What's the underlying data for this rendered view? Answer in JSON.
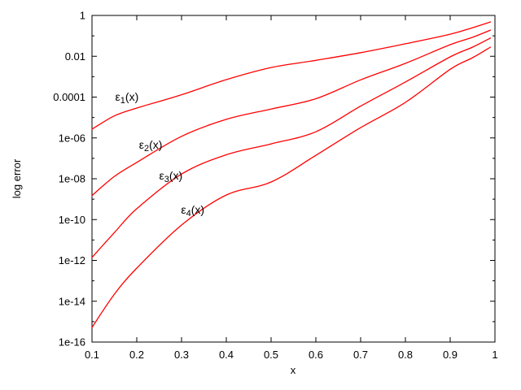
{
  "chart_data": {
    "type": "line",
    "title": "",
    "xlabel": "x",
    "ylabel": "log error",
    "x_range": [
      0.1,
      1.0
    ],
    "y_range": [
      1e-16,
      1
    ],
    "x_scale": "linear",
    "y_scale": "log",
    "grid": false,
    "legend_position": "inline-curve-labels",
    "line_color": "#ff0000",
    "frame_color": "#000000",
    "x_ticks": [
      "0.1",
      "0.2",
      "0.3",
      "0.4",
      "0.5",
      "0.6",
      "0.7",
      "0.8",
      "0.9",
      "1"
    ],
    "y_ticks": [
      "1",
      "0.01",
      "0.0001",
      "1e-06",
      "1e-08",
      "1e-10",
      "1e-12",
      "1e-14",
      "1e-16"
    ],
    "y_tick_exponents": [
      0,
      -2,
      -4,
      -6,
      -8,
      -10,
      -12,
      -14,
      -16
    ],
    "series": [
      {
        "name": "epsilon1",
        "label": "ε1(x)",
        "label_parts": {
          "base": "ε",
          "sub": "1",
          "rest": "(x)"
        },
        "label_anchor": {
          "x": 0.178,
          "y": 6.6e-05
        },
        "x": [
          0.1,
          0.15,
          0.2,
          0.3,
          0.4,
          0.5,
          0.6,
          0.7,
          0.8,
          0.9,
          0.95,
          0.99
        ],
        "y": [
          2.7e-06,
          1.2e-05,
          2.9e-05,
          0.00013,
          0.00072,
          0.0028,
          0.0063,
          0.015,
          0.041,
          0.12,
          0.25,
          0.48
        ]
      },
      {
        "name": "epsilon2",
        "label": "ε2(x)",
        "label_parts": {
          "base": "ε",
          "sub": "2",
          "rest": "(x)"
        },
        "label_anchor": {
          "x": 0.231,
          "y": 3e-07
        },
        "x": [
          0.1,
          0.15,
          0.2,
          0.3,
          0.4,
          0.5,
          0.6,
          0.7,
          0.8,
          0.9,
          0.95,
          0.99
        ],
        "y": [
          1.5e-09,
          1.3e-08,
          6.3e-08,
          1.2e-06,
          8.1e-06,
          2.6e-05,
          8.3e-05,
          0.0007,
          0.0045,
          0.037,
          0.085,
          0.19
        ]
      },
      {
        "name": "epsilon3",
        "label": "ε3(x)",
        "label_parts": {
          "base": "ε",
          "sub": "3",
          "rest": "(x)"
        },
        "label_anchor": {
          "x": 0.276,
          "y": 9.1e-09
        },
        "x": [
          0.1,
          0.15,
          0.2,
          0.3,
          0.4,
          0.5,
          0.6,
          0.7,
          0.8,
          0.9,
          0.95,
          0.99
        ],
        "y": [
          1.4e-12,
          2.3e-11,
          3.4e-10,
          1.7e-08,
          1.5e-07,
          5.1e-07,
          2e-06,
          3.6e-05,
          0.00055,
          0.0093,
          0.028,
          0.078
        ]
      },
      {
        "name": "epsilon4",
        "label": "ε4(x)",
        "label_parts": {
          "base": "ε",
          "sub": "4",
          "rest": "(x)"
        },
        "label_anchor": {
          "x": 0.325,
          "y": 1.9e-10
        },
        "x": [
          0.1,
          0.15,
          0.2,
          0.3,
          0.4,
          0.5,
          0.6,
          0.7,
          0.8,
          0.9,
          0.95,
          0.99
        ],
        "y": [
          5.2e-16,
          2.2e-14,
          4.2e-13,
          5.4e-11,
          1.6e-09,
          6.9e-09,
          1.4e-07,
          3.2e-06,
          5.5e-05,
          0.0023,
          0.0085,
          0.028
        ]
      }
    ]
  }
}
